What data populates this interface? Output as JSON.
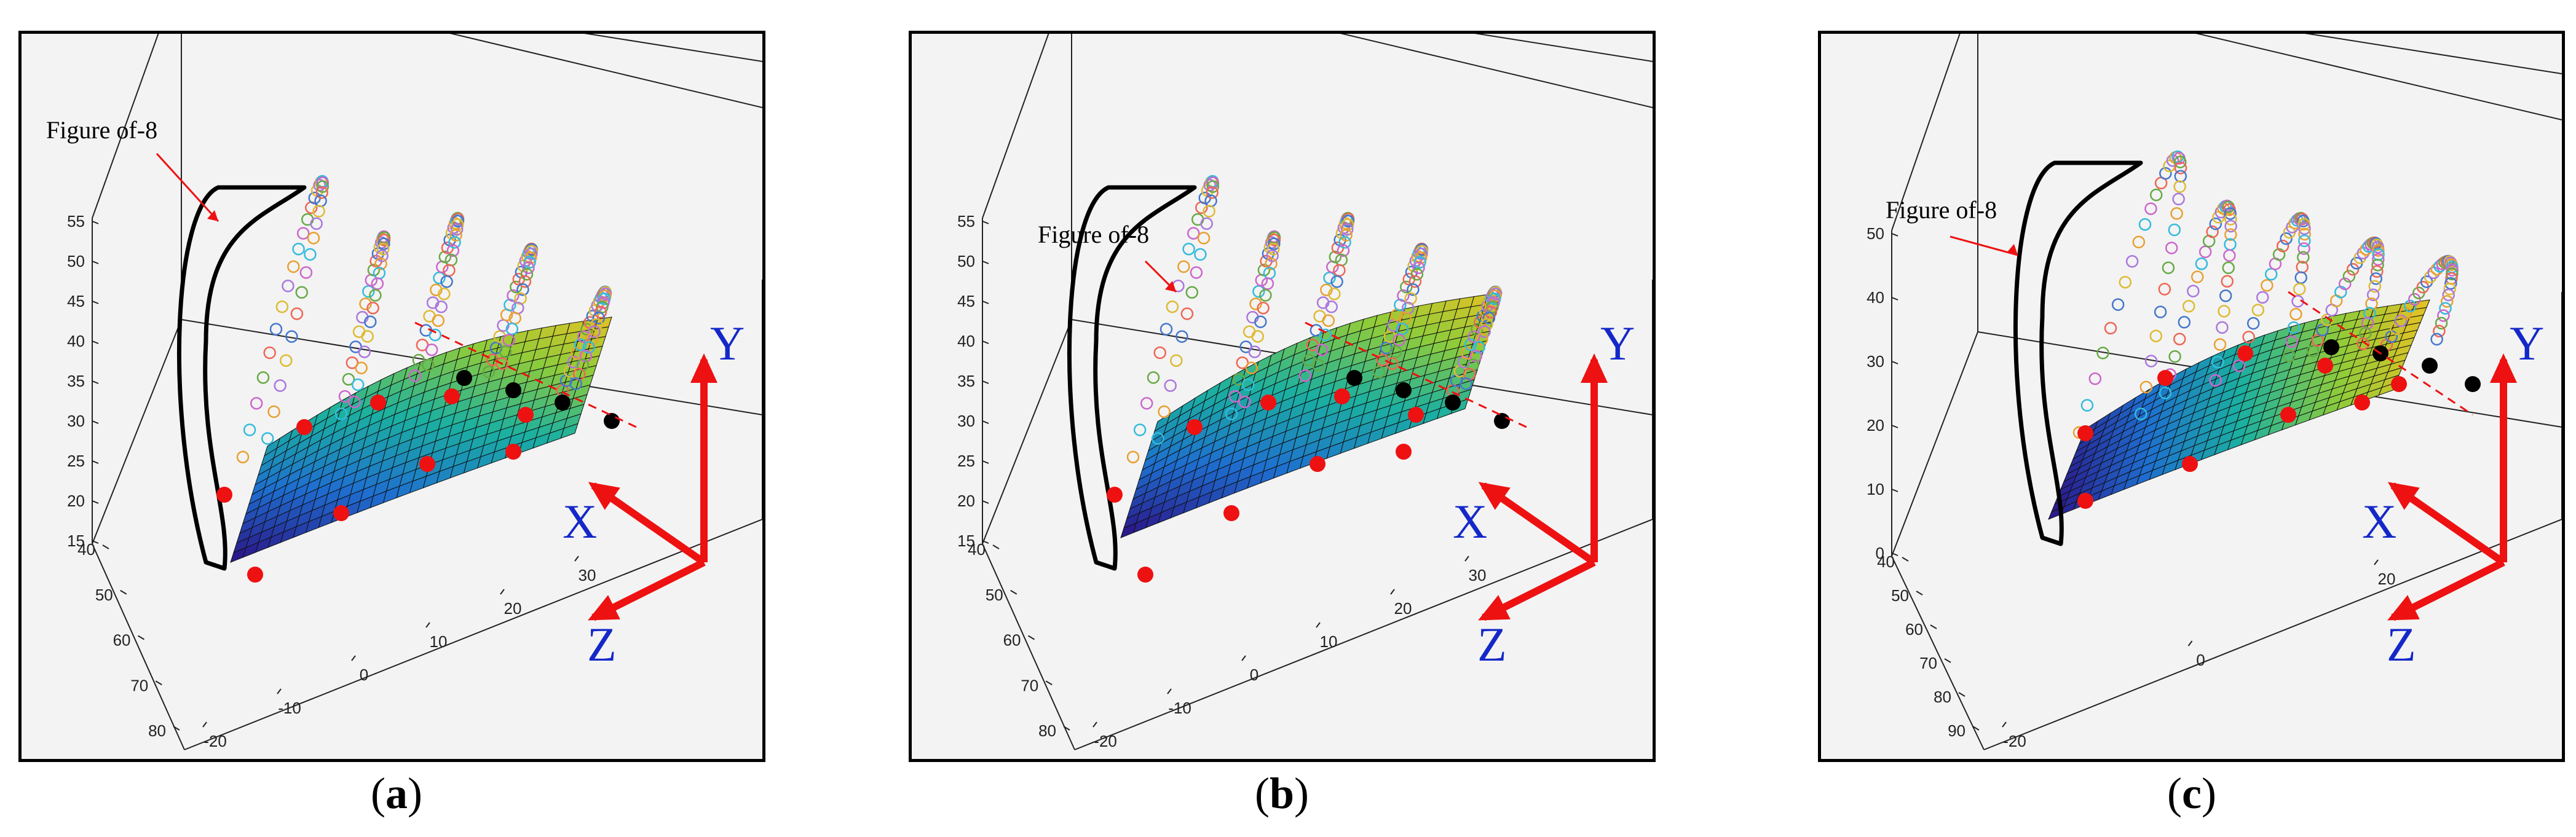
{
  "colors": {
    "axis_arrow": "#ee1111",
    "axis_letter": "#1428c8",
    "annotation_arrow": "#ee1111",
    "marker_red": "#ee1111",
    "marker_black": "#000000",
    "outline": "#000000",
    "surface_colormap": [
      "#2a1a8c",
      "#1e6fd0",
      "#1bb0a0",
      "#8fcc3a",
      "#f0c020"
    ]
  },
  "chart_data": [
    {
      "type": "scatter",
      "panel_label": "a",
      "annotation": "Figure of-8",
      "y_ticks": [
        "15",
        "20",
        "25",
        "30",
        "35",
        "40",
        "45",
        "50",
        "55"
      ],
      "x_ticks": [
        "40",
        "50",
        "60",
        "70",
        "80"
      ],
      "z_ticks": [
        "-20",
        "-10",
        "0",
        "10",
        "20",
        "30"
      ],
      "axis_letters": {
        "x": "X",
        "y": "Y",
        "z": "Z"
      },
      "grid": false
    },
    {
      "type": "scatter",
      "panel_label": "b",
      "annotation": "Figure of-8",
      "y_ticks": [
        "15",
        "20",
        "25",
        "30",
        "35",
        "40",
        "45",
        "50",
        "55"
      ],
      "x_ticks": [
        "40",
        "50",
        "60",
        "70",
        "80"
      ],
      "z_ticks": [
        "-20",
        "-10",
        "0",
        "10",
        "20",
        "30"
      ],
      "axis_letters": {
        "x": "X",
        "y": "Y",
        "z": "Z"
      },
      "grid": false
    },
    {
      "type": "scatter",
      "panel_label": "c",
      "annotation": "Figure of-8",
      "y_ticks": [
        "0",
        "10",
        "20",
        "30",
        "40",
        "50"
      ],
      "x_ticks": [
        "40",
        "50",
        "60",
        "70",
        "80",
        "90"
      ],
      "z_ticks": [
        "-20",
        "0",
        "20"
      ],
      "axis_letters": {
        "x": "X",
        "y": "Y",
        "z": "Z"
      },
      "grid": false
    }
  ]
}
